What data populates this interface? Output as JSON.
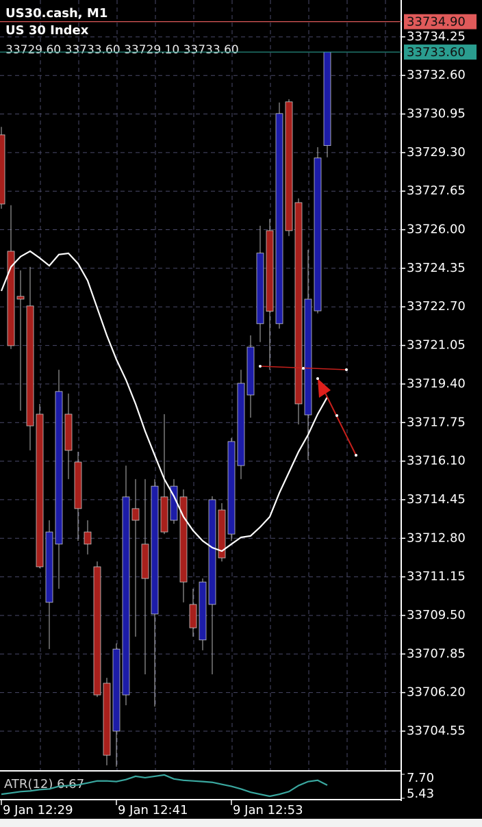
{
  "header": {
    "symbol": "US30.cash, M1",
    "description": "US 30 Index",
    "ohlc": [
      {
        "value": 33729.6,
        "label": "33729.60"
      },
      {
        "value": 33733.6,
        "label": "33733.60"
      },
      {
        "value": 33729.1,
        "label": "33729.10"
      },
      {
        "value": 33733.6,
        "label": "33733.60"
      }
    ]
  },
  "chart_data": {
    "type": "candlestick",
    "categories": [
      "9 Jan 12:29",
      null,
      null,
      null,
      null,
      null,
      null,
      null,
      null,
      null,
      null,
      null,
      "9 Jan 12:41",
      null,
      null,
      null,
      null,
      null,
      null,
      null,
      null,
      null,
      null,
      null,
      "9 Jan 12:53",
      null,
      null,
      null,
      null,
      null,
      null,
      null,
      null,
      null,
      null
    ],
    "open": [
      33730.06,
      33725.08,
      33723.15,
      33722.74,
      33718.11,
      33710.06,
      33712.55,
      33718.11,
      33716.06,
      33713.07,
      33711.58,
      33706.6,
      33704.55,
      33706.1,
      33714.07,
      33712.55,
      33709.56,
      33714.57,
      33713.57,
      33714.57,
      33709.97,
      33708.45,
      33709.97,
      33714.01,
      33712.98,
      33715.91,
      33718.93,
      33721.98,
      33725.96,
      33721.98,
      33731.47,
      33727.16,
      33718.08,
      33722.53,
      33729.6
    ],
    "high": [
      33730.4,
      33727.05,
      33724.26,
      33724.41,
      33718.55,
      33713.57,
      33720.01,
      33718.99,
      33716.5,
      33713.57,
      33711.81,
      33706.83,
      33708.3,
      33715.91,
      33715.33,
      33715.33,
      33715.33,
      33718.11,
      33715.33,
      33714.89,
      33710.64,
      33711.08,
      33714.6,
      33714.3,
      33717.09,
      33720.01,
      33721.48,
      33726.17,
      33726.46,
      33731.44,
      33731.58,
      33727.34,
      33725.14,
      33729.53,
      33733.6
    ],
    "low": [
      33726.9,
      33720.9,
      33718.26,
      33716.56,
      33711.52,
      33708.06,
      33710.64,
      33715.33,
      33712.69,
      33712.11,
      33706.01,
      33703.09,
      33703.03,
      33705.66,
      33708.59,
      33706.98,
      33705.6,
      33712.98,
      33713.42,
      33710.06,
      33708.59,
      33708.01,
      33706.98,
      33711.81,
      33712.69,
      33715.33,
      33717.96,
      33721.19,
      33720.01,
      33721.77,
      33725.73,
      33717.67,
      33716.15,
      33722.42,
      33729.1
    ],
    "close": [
      33727.1,
      33721.04,
      33723.03,
      33717.61,
      33711.58,
      33713.07,
      33719.08,
      33716.56,
      33714.07,
      33712.55,
      33706.1,
      33703.52,
      33708.06,
      33714.57,
      33713.57,
      33711.08,
      33715.03,
      33713.07,
      33715.03,
      33710.93,
      33708.97,
      33710.93,
      33714.45,
      33711.96,
      33716.94,
      33719.43,
      33720.98,
      33725.0,
      33722.51,
      33730.97,
      33725.96,
      33718.55,
      33723.03,
      33729.07,
      33733.6
    ],
    "up_color": "#1c1ca8",
    "down_color": "#a8201c",
    "wick_color": "#b8b8b8",
    "moving_average": {
      "color": "#ffffff",
      "values": [
        33723.38,
        33724.41,
        33724.85,
        33725.08,
        33724.79,
        33724.46,
        33724.94,
        33724.99,
        33724.55,
        33723.82,
        33722.65,
        33721.48,
        33720.45,
        33719.58,
        33718.55,
        33717.38,
        33716.35,
        33715.33,
        33714.6,
        33713.72,
        33713.13,
        33712.69,
        33712.4,
        33712.25,
        33712.55,
        33712.84,
        33712.9,
        33713.28,
        33713.72,
        33714.74,
        33715.62,
        33716.5,
        33717.23,
        33718.11,
        33718.84
      ]
    },
    "ylim": [
      33702.88,
      33735.71
    ],
    "yticks": [
      33734.25,
      {
        "value": 33732.6,
        "label": "33732.60"
      },
      33730.95,
      {
        "value": 33729.3,
        "label": "33729.30"
      },
      33727.65,
      {
        "value": 33726,
        "label": "33726.00"
      },
      33724.35,
      {
        "value": 33722.7,
        "label": "33722.70"
      },
      33721.05,
      {
        "value": 33719.4,
        "label": "33719.40"
      },
      33717.75,
      {
        "value": 33716.1,
        "label": "33716.10"
      },
      33714.45,
      {
        "value": 33712.8,
        "label": "33712.80"
      },
      33711.15,
      {
        "value": 33709.5,
        "label": "33709.50"
      },
      33707.85,
      {
        "value": 33706.2,
        "label": "33706.20"
      },
      33704.55
    ],
    "grid": true,
    "ask": {
      "value": 33734.9,
      "label": "33734.90",
      "color": "#e05a5a"
    },
    "bid": {
      "value": 33733.6,
      "label": "33733.60",
      "color": "#2a9d8f"
    },
    "atr": {
      "label": "ATR(12)",
      "color": "#3aa8a0",
      "values": [
        5.81,
        5.93,
        6.06,
        6.12,
        6.25,
        6.31,
        6.56,
        6.63,
        6.69,
        6.88,
        7.07,
        7.07,
        7.01,
        7.2,
        7.51,
        7.38,
        7.51,
        7.64,
        7.26,
        7.13,
        7.07,
        7.01,
        6.94,
        6.75,
        6.56,
        6.31,
        6.0,
        5.81,
        5.62,
        5.81,
        6.06,
        6.63,
        7.01,
        7.13,
        6.67
      ],
      "ylim": [
        5.43,
        7.7
      ],
      "yticks": [
        {
          "value": 7.7,
          "label": "7.70"
        },
        5.43
      ]
    }
  }
}
